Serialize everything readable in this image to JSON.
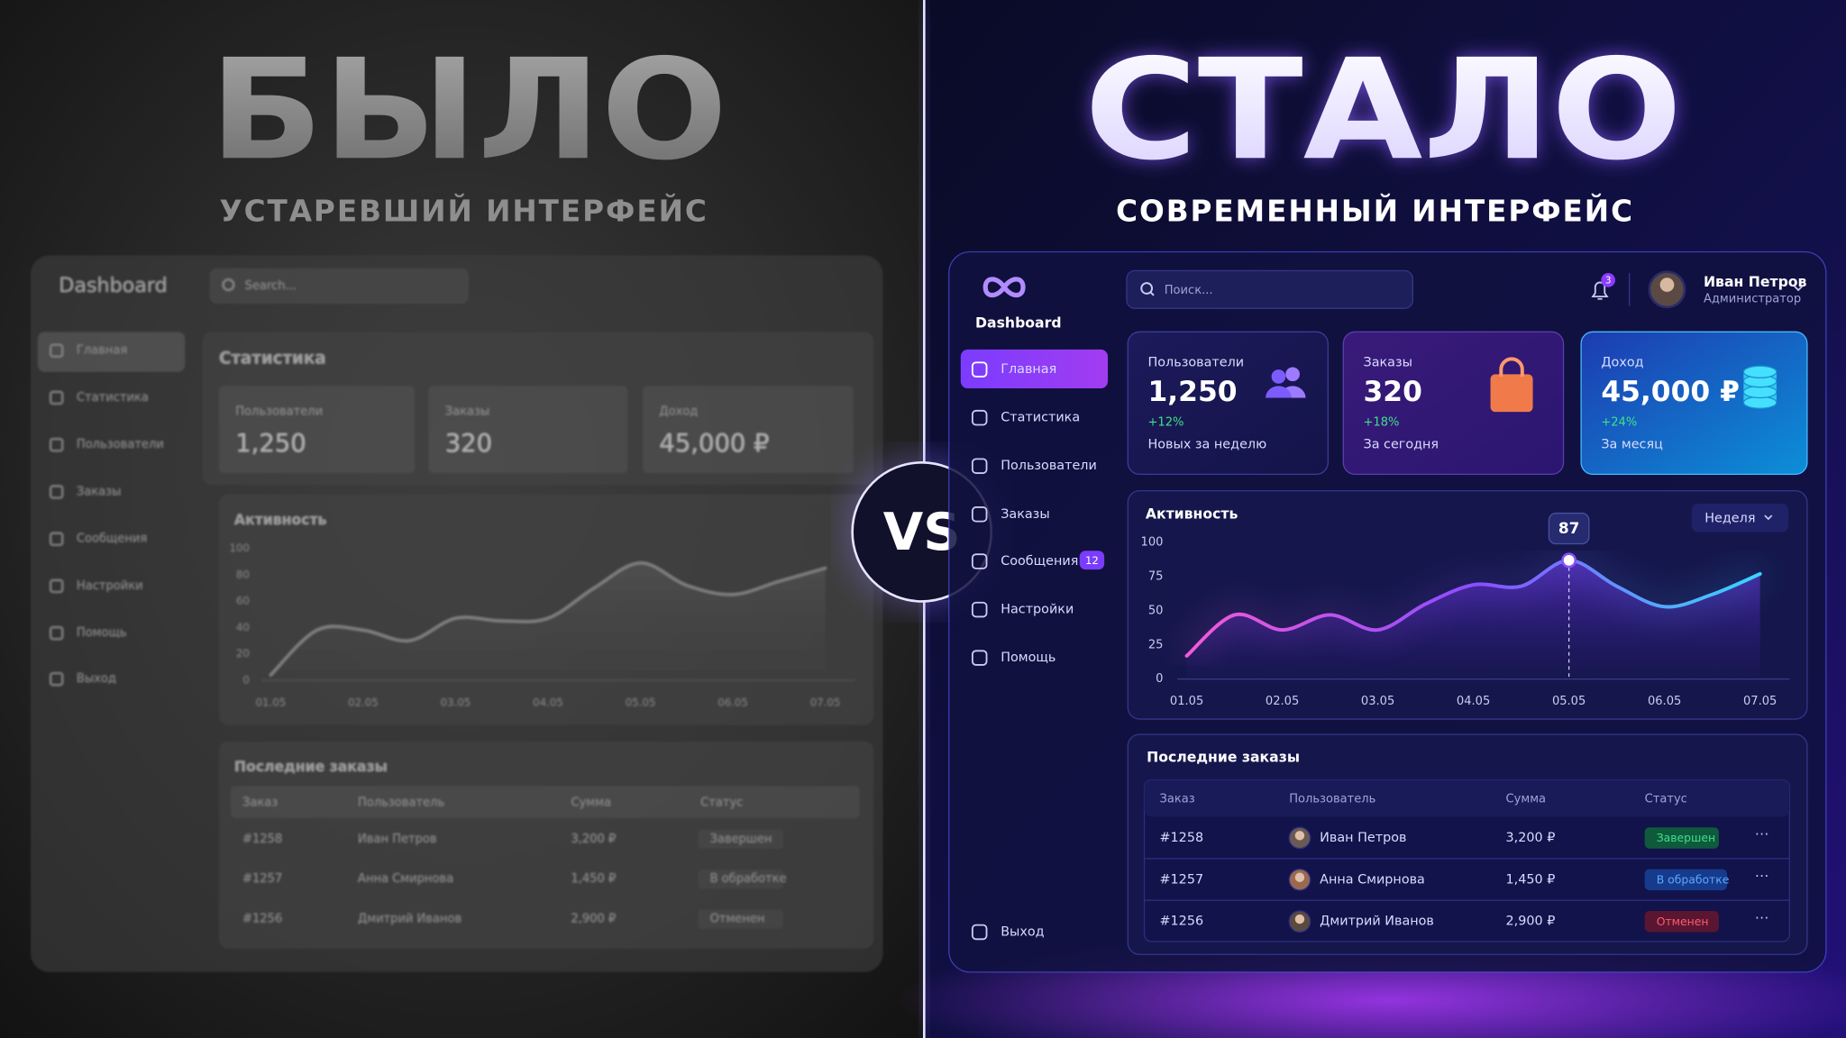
{
  "left": {
    "title": "БЫЛО",
    "subtitle": "УСТАРЕВШИЙ ИНТЕРФЕЙС",
    "brand": "Dashboard",
    "search": "Search...",
    "nav": [
      "Главная",
      "Статистика",
      "Пользователи",
      "Заказы",
      "Сообщения",
      "Настройки",
      "Помощь",
      "Выход"
    ],
    "section": "Статистика",
    "cards": [
      {
        "label": "Пользователи",
        "value": "1,250"
      },
      {
        "label": "Заказы",
        "value": "320"
      },
      {
        "label": "Доход",
        "value": "45,000 ₽"
      }
    ],
    "orders": {
      "title": "Последние заказы",
      "header": [
        "Заказ",
        "Пользователь",
        "Сумма",
        "Статус"
      ],
      "rows": [
        [
          "#1258",
          "Иван Петров",
          "3,200 ₽",
          "Завершен"
        ],
        [
          "#1257",
          "Анна Смирнова",
          "1,450 ₽",
          "В обработке"
        ],
        [
          "#1256",
          "Дмитрий Иванов",
          "2,900 ₽",
          "Отменен"
        ]
      ]
    }
  },
  "vs": "VS",
  "right": {
    "title": "СТАЛО",
    "subtitle": "СОВРЕМЕННЫЙ ИНТЕРФЕЙС",
    "brand": "Dashboard",
    "search": "Поиск...",
    "notifications": "3",
    "user": {
      "name": "Иван Петров",
      "role": "Администратор"
    },
    "nav": [
      {
        "label": "Главная"
      },
      {
        "label": "Статистика"
      },
      {
        "label": "Пользователи"
      },
      {
        "label": "Заказы"
      },
      {
        "label": "Сообщения",
        "badge": "12"
      },
      {
        "label": "Настройки"
      },
      {
        "label": "Помощь"
      },
      {
        "label": "Выход"
      }
    ],
    "cards": [
      {
        "label": "Пользователи",
        "value": "1,250",
        "change": "+12%",
        "note": "Новых за неделю"
      },
      {
        "label": "Заказы",
        "value": "320",
        "change": "+18%",
        "note": "За сегодня"
      },
      {
        "label": "Доход",
        "value": "45,000 ₽",
        "change": "+24%",
        "note": "За месяц"
      }
    ],
    "period": "Неделя",
    "orders": {
      "title": "Последние заказы",
      "header": [
        "Заказ",
        "Пользователь",
        "Сумма",
        "Статус"
      ],
      "rows": [
        [
          "#1258",
          "Иван Петров",
          "3,200 ₽",
          "Завершен"
        ],
        [
          "#1257",
          "Анна Смирнова",
          "1,450 ₽",
          "В обработке"
        ],
        [
          "#1256",
          "Дмитрий Иванов",
          "2,900 ₽",
          "Отменен"
        ]
      ]
    }
  },
  "chart_data": [
    {
      "type": "line",
      "title": "Активность",
      "categories": [
        "01.05",
        null,
        "02.05",
        null,
        "03.05",
        null,
        "04.05",
        null,
        "05.05",
        null,
        "06.05",
        null,
        "07.05"
      ],
      "values": [
        4,
        38,
        38,
        30,
        47,
        45,
        47,
        70,
        89,
        72,
        65,
        75,
        85
      ],
      "ylim": [
        0,
        100
      ],
      "yticks": [
        0,
        20,
        40,
        60,
        80,
        100
      ],
      "color": "#8c8c8c"
    },
    {
      "type": "line",
      "title": "Активность",
      "categories": [
        "01.05",
        null,
        "02.05",
        null,
        "03.05",
        null,
        "04.05",
        null,
        "05.05",
        null,
        "06.05",
        null,
        "07.05"
      ],
      "values": [
        17,
        47,
        36,
        47,
        36,
        55,
        69,
        68,
        87,
        68,
        53,
        62,
        77
      ],
      "ylim": [
        0,
        100
      ],
      "yticks": [
        0,
        25,
        50,
        75,
        100
      ],
      "gradient": [
        "#f45ad6",
        "#8b4dff",
        "#38d6ff"
      ]
    }
  ]
}
